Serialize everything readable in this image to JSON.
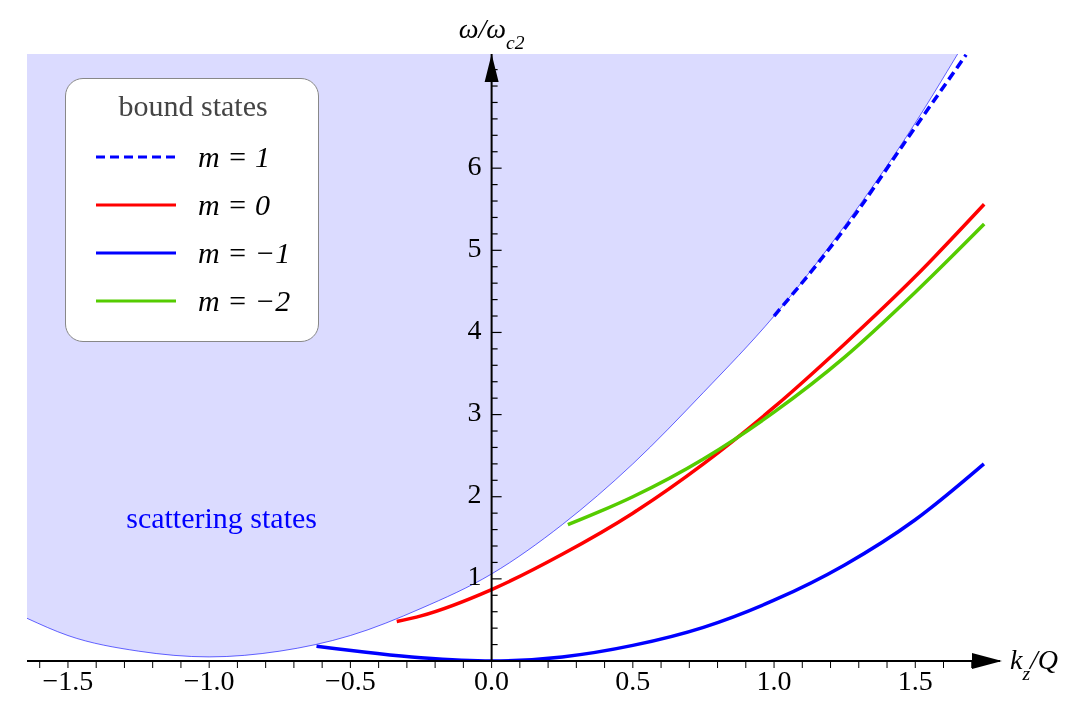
{
  "chart_data": {
    "type": "line",
    "xlabel": "k$_{z}$/Q",
    "ylabel": "ω/ω$_{c2}$",
    "legend_title": "bound states",
    "xlim": [
      -1.645,
      1.8
    ],
    "ylim": [
      0,
      7.39
    ],
    "xticks": [
      {
        "value": -1.6,
        "label": null
      },
      {
        "value": -1.5,
        "label": "−1.5"
      },
      {
        "value": -1.4,
        "label": null
      },
      {
        "value": -1.3,
        "label": null
      },
      {
        "value": -1.2,
        "label": null
      },
      {
        "value": -1.1,
        "label": null
      },
      {
        "value": -1.0,
        "label": "−1.0"
      },
      {
        "value": -0.9,
        "label": null
      },
      {
        "value": -0.8,
        "label": null
      },
      {
        "value": -0.7,
        "label": null
      },
      {
        "value": -0.6,
        "label": null
      },
      {
        "value": -0.5,
        "label": "−0.5"
      },
      {
        "value": -0.4,
        "label": null
      },
      {
        "value": -0.3,
        "label": null
      },
      {
        "value": -0.2,
        "label": null
      },
      {
        "value": -0.1,
        "label": null
      },
      {
        "value": 0,
        "label": "0.0"
      },
      {
        "value": 0.1,
        "label": null
      },
      {
        "value": 0.2,
        "label": null
      },
      {
        "value": 0.3,
        "label": null
      },
      {
        "value": 0.4,
        "label": null
      },
      {
        "value": 0.5,
        "label": "0.5"
      },
      {
        "value": 0.6,
        "label": null
      },
      {
        "value": 0.7,
        "label": null
      },
      {
        "value": 0.8,
        "label": null
      },
      {
        "value": 0.9,
        "label": null
      },
      {
        "value": 1.0,
        "label": "1.0"
      },
      {
        "value": 1.1,
        "label": null
      },
      {
        "value": 1.2,
        "label": null
      },
      {
        "value": 1.3,
        "label": null
      },
      {
        "value": 1.4,
        "label": null
      },
      {
        "value": 1.5,
        "label": "1.5"
      },
      {
        "value": 1.6,
        "label": null
      },
      {
        "value": 1.7,
        "label": null
      }
    ],
    "yticks": [
      {
        "value": 0.2,
        "label": null
      },
      {
        "value": 0.4,
        "label": null
      },
      {
        "value": 0.6,
        "label": null
      },
      {
        "value": 0.8,
        "label": null
      },
      1,
      {
        "value": 1.2,
        "label": null
      },
      {
        "value": 1.4,
        "label": null
      },
      {
        "value": 1.6,
        "label": null
      },
      {
        "value": 1.8,
        "label": null
      },
      2,
      {
        "value": 2.2,
        "label": null
      },
      {
        "value": 2.4,
        "label": null
      },
      {
        "value": 2.6,
        "label": null
      },
      {
        "value": 2.8,
        "label": null
      },
      3,
      {
        "value": 3.2,
        "label": null
      },
      {
        "value": 3.4,
        "label": null
      },
      {
        "value": 3.6,
        "label": null
      },
      {
        "value": 3.8,
        "label": null
      },
      4,
      {
        "value": 4.2,
        "label": null
      },
      {
        "value": 4.4,
        "label": null
      },
      {
        "value": 4.6,
        "label": null
      },
      {
        "value": 4.8,
        "label": null
      },
      5,
      {
        "value": 5.2,
        "label": null
      },
      {
        "value": 5.4,
        "label": null
      },
      {
        "value": 5.6,
        "label": null
      },
      {
        "value": 5.8,
        "label": null
      },
      6,
      {
        "value": 6.2,
        "label": null
      },
      {
        "value": 6.4,
        "label": null
      },
      {
        "value": 6.6,
        "label": null
      },
      {
        "value": 6.8,
        "label": null
      },
      {
        "value": 7.0,
        "label": null
      },
      {
        "value": 7.2,
        "label": null
      }
    ],
    "legend": "top left",
    "annotations": [
      "scattering states"
    ],
    "marker": "none",
    "series": [
      {
        "color": "#0000ff",
        "line_style": "solid",
        "x": [
          -1.645,
          -1.5,
          -1.25,
          -1.0,
          -0.75,
          -0.5,
          -0.25,
          0,
          0.25,
          0.5,
          0.75,
          1.0,
          1.25,
          1.5,
          1.65
        ],
        "values": [
          0.52,
          0.31,
          0.12,
          0.05,
          0.12,
          0.31,
          0.64,
          1.06,
          1.66,
          2.4,
          3.27,
          4.2,
          5.3,
          6.55,
          7.39
        ],
        "lower": [
          0.52,
          0.31,
          0.12,
          0.05,
          0.12,
          0.31,
          0.64,
          1.06,
          1.66,
          2.4,
          3.27,
          4.2,
          5.3,
          6.55,
          7.39
        ],
        "upper": [
          7.39,
          7.39,
          7.39,
          7.39,
          7.39,
          7.39,
          7.39,
          7.39,
          7.39,
          7.39,
          7.39,
          7.39,
          7.39,
          7.39,
          7.39
        ]
      },
      {
        "name": "m = 1",
        "color": "#0000ff",
        "line_style": "dashed",
        "x": [
          1.0,
          1.15,
          1.29,
          1.45,
          1.68
        ],
        "values": [
          4.2,
          4.82,
          5.45,
          6.25,
          7.38
        ]
      },
      {
        "name": "m = 0",
        "color": "#ff0000",
        "line_style": "solid",
        "x": [
          -0.336,
          -0.25,
          0,
          0.25,
          0.5,
          0.75,
          1.0,
          1.25,
          1.5,
          1.744
        ],
        "values": [
          0.48,
          0.55,
          0.87,
          1.3,
          1.8,
          2.4,
          3.09,
          3.86,
          4.68,
          5.56
        ]
      },
      {
        "name": "m = −1",
        "color": "#0000ff",
        "line_style": "solid",
        "x": [
          -0.62,
          -0.25,
          0,
          0.25,
          0.5,
          0.75,
          1.0,
          1.25,
          1.5,
          1.743
        ],
        "values": [
          0.18,
          0.04,
          0,
          0.05,
          0.19,
          0.41,
          0.74,
          1.17,
          1.72,
          2.4
        ]
      },
      {
        "name": "m = −2",
        "color": "#55cc00",
        "line_style": "solid",
        "x": [
          0.27,
          0.5,
          0.75,
          1.0,
          1.25,
          1.5,
          1.744
        ],
        "values": [
          1.66,
          2.0,
          2.46,
          3.03,
          3.7,
          4.49,
          5.32
        ]
      }
    ]
  }
}
